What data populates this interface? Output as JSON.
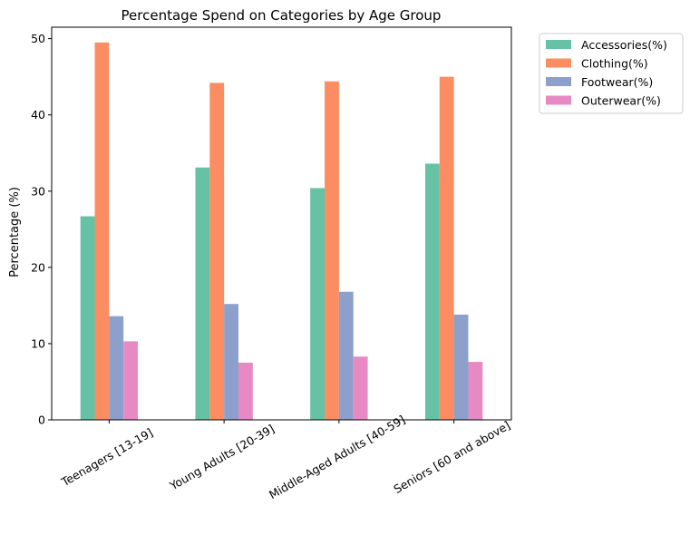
{
  "chart_data": {
    "type": "bar",
    "title": "Percentage Spend on Categories by Age Group",
    "xlabel": "",
    "ylabel": "Percentage (%)",
    "ylim": [
      0,
      51.5
    ],
    "yticks": [
      0,
      10,
      20,
      30,
      40,
      50
    ],
    "grid": false,
    "legend_position": "outside-top-right",
    "categories": [
      "Teenagers [13-19]",
      "Young Adults [20-39]",
      "Middle-Aged Adults [40-59]",
      "Seniors [60 and above]"
    ],
    "series": [
      {
        "name": "Accessories(%)",
        "color": "#66c2a5",
        "values": [
          26.7,
          33.1,
          30.4,
          33.6
        ]
      },
      {
        "name": "Clothing(%)",
        "color": "#fc8d62",
        "values": [
          49.5,
          44.2,
          44.4,
          45.0
        ]
      },
      {
        "name": "Footwear(%)",
        "color": "#8da0cb",
        "values": [
          13.6,
          15.2,
          16.8,
          13.8
        ]
      },
      {
        "name": "Outerwear(%)",
        "color": "#e78ac3",
        "values": [
          10.3,
          7.5,
          8.3,
          7.6
        ]
      }
    ]
  }
}
